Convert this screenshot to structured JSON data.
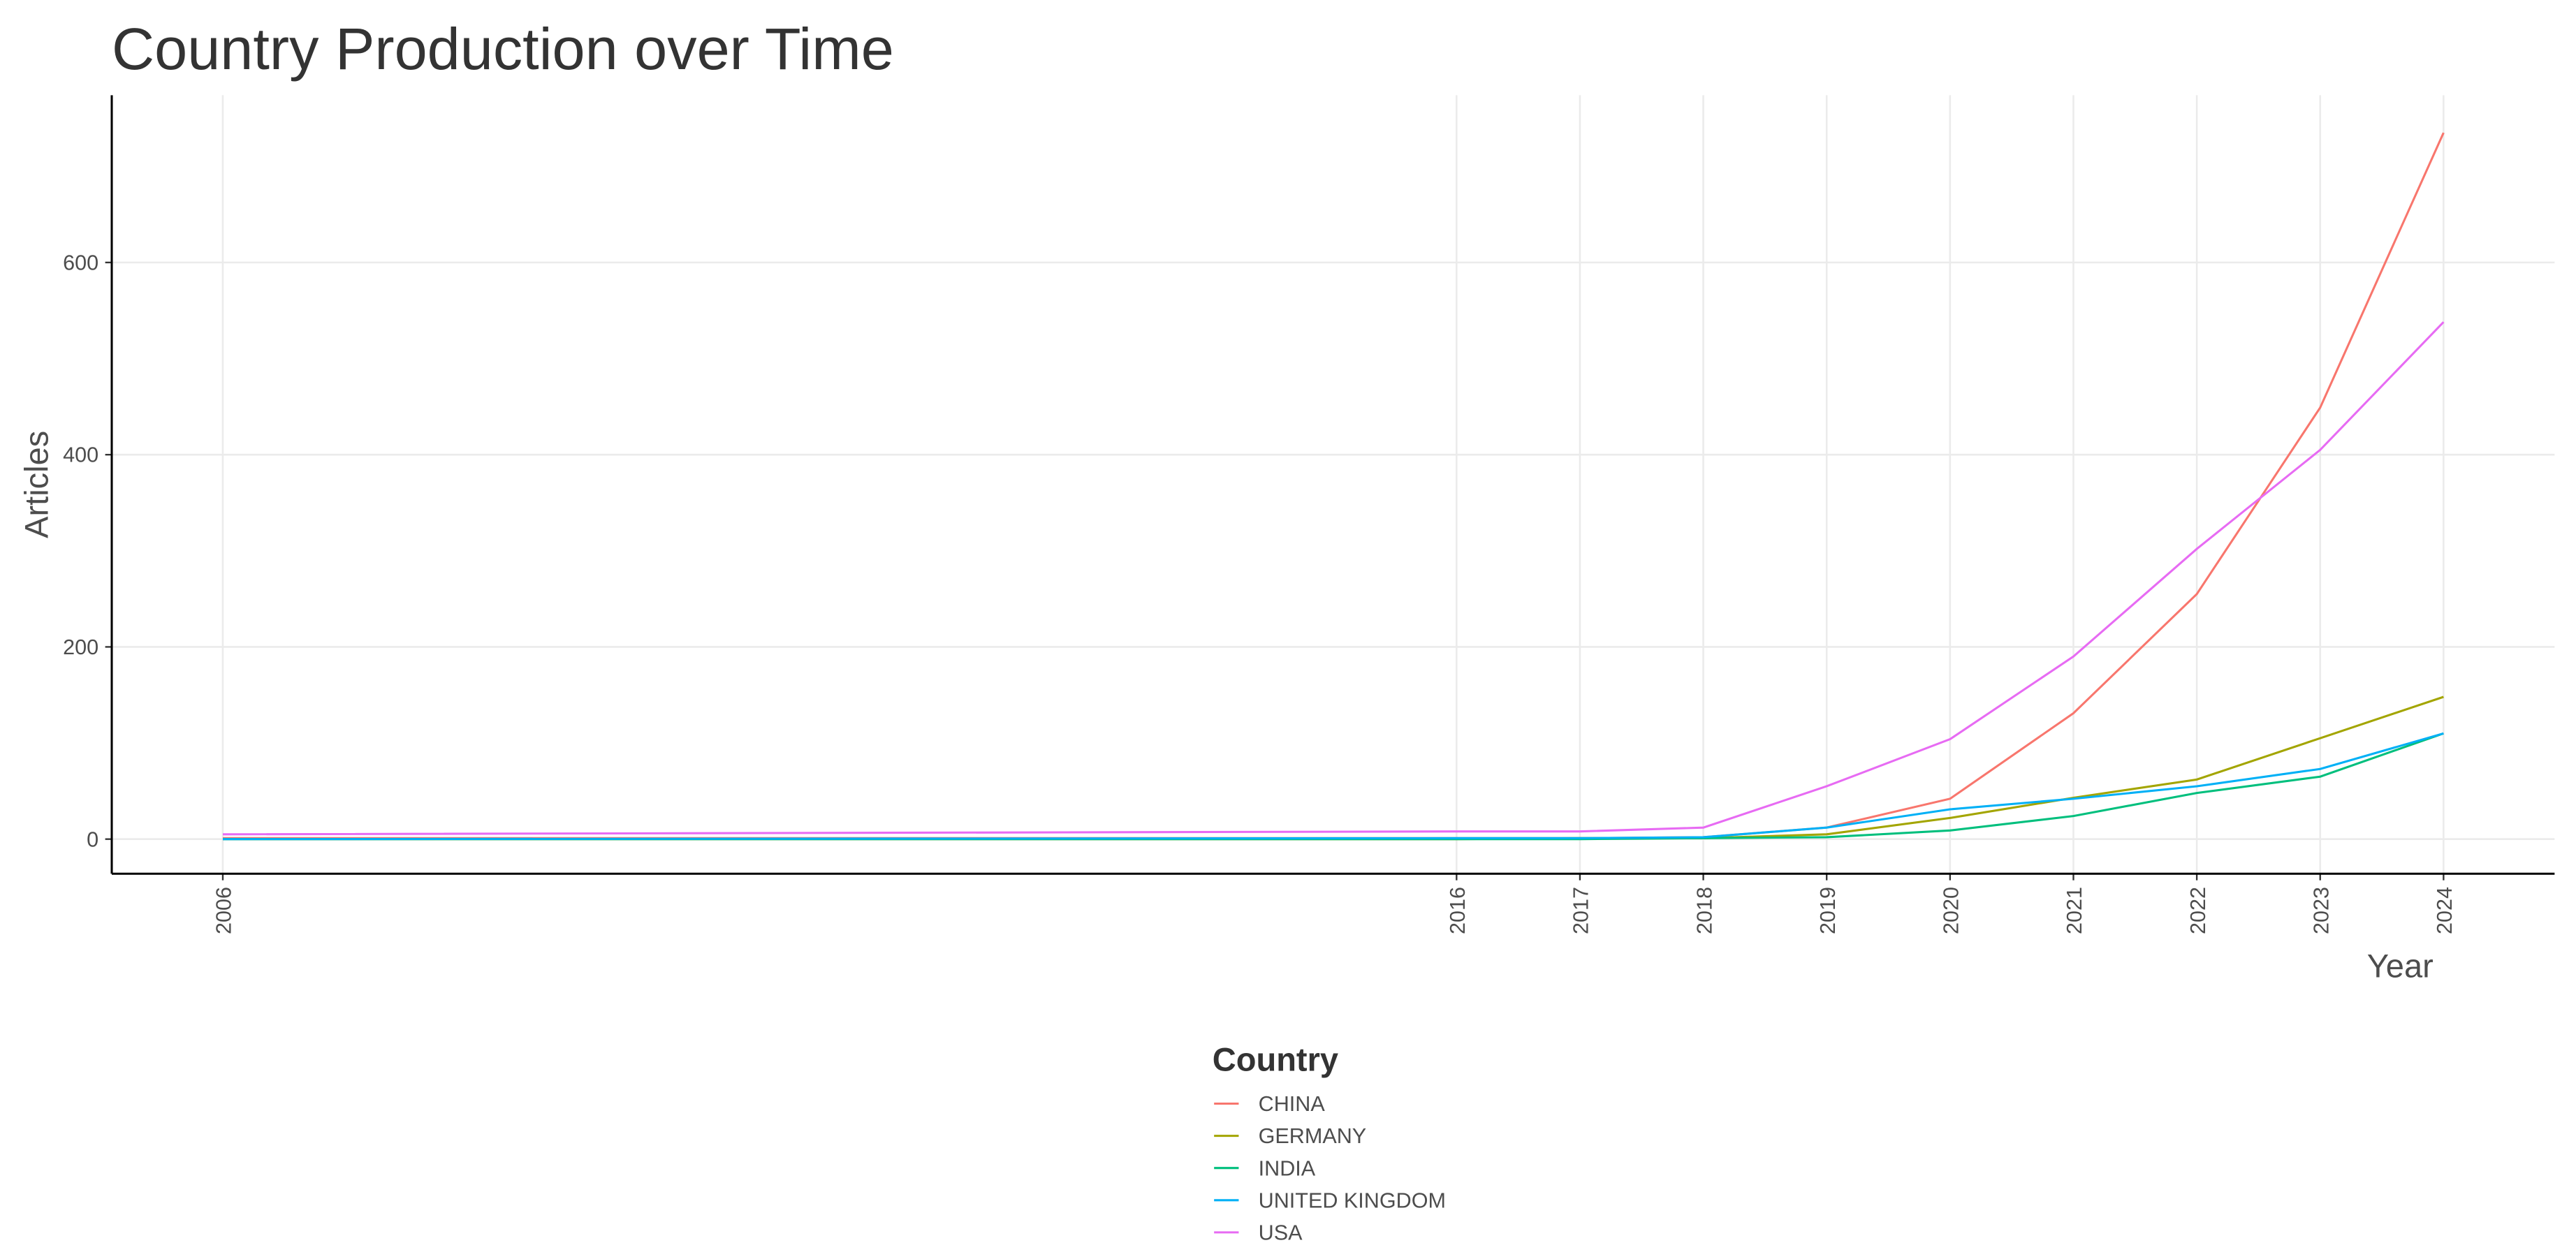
{
  "chart_data": {
    "type": "line",
    "title": "Country Production over Time",
    "x_label": "Year",
    "y_label": "Articles",
    "legend_title": "Country",
    "x": [
      2006,
      2016,
      2017,
      2018,
      2019,
      2020,
      2021,
      2022,
      2023,
      2024
    ],
    "series": [
      {
        "name": "CHINA",
        "color": "#F8766D",
        "values": [
          1,
          1,
          1,
          2,
          12,
          42,
          131,
          255,
          449,
          735
        ]
      },
      {
        "name": "GERMANY",
        "color": "#A3A500",
        "values": [
          0,
          0,
          1,
          1,
          5,
          22,
          43,
          62,
          105,
          148
        ]
      },
      {
        "name": "INDIA",
        "color": "#00BF7D",
        "values": [
          0,
          0,
          0,
          1,
          2,
          9,
          24,
          48,
          65,
          110
        ]
      },
      {
        "name": "UNITED KINGDOM",
        "color": "#00B0F6",
        "values": [
          0,
          1,
          1,
          2,
          12,
          31,
          42,
          55,
          73,
          110
        ]
      },
      {
        "name": "USA",
        "color": "#E76BF3",
        "values": [
          5,
          8,
          8,
          12,
          55,
          104,
          190,
          302,
          405,
          538
        ]
      }
    ],
    "xlim": [
      2005.1,
      2024.9
    ],
    "xticks": [
      2006,
      2016,
      2017,
      2018,
      2019,
      2020,
      2021,
      2022,
      2023,
      2024
    ],
    "ylim": [
      -36,
      774
    ],
    "yticks": [
      0,
      200,
      400,
      600
    ],
    "grid": true,
    "legend_position": "bottom"
  }
}
